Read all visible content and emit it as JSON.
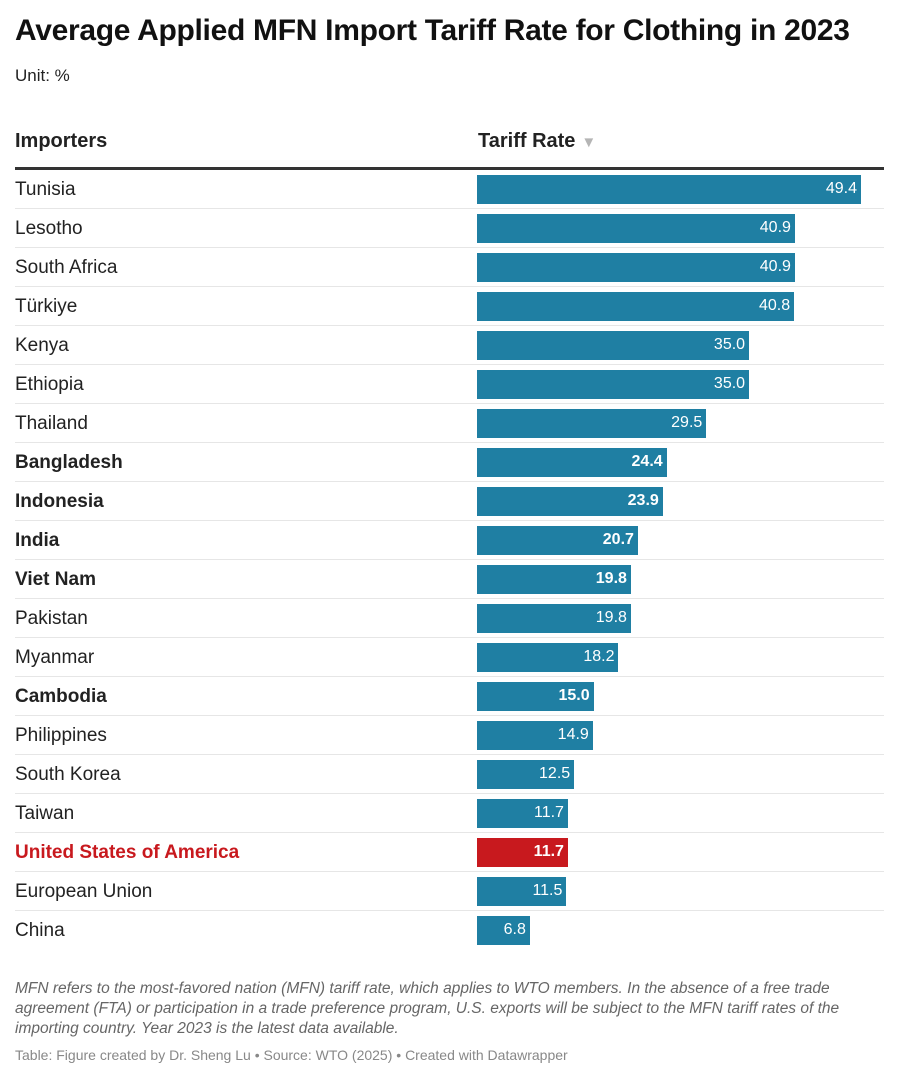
{
  "title": "Average Applied MFN Import Tariff Rate for Clothing in 2023",
  "unit": "Unit: %",
  "columns": {
    "importers": "Importers",
    "rate": "Tariff Rate",
    "sort_icon": "triangle-down-icon"
  },
  "colors": {
    "bar": "#1f7fa3",
    "highlight": "#c8191e"
  },
  "chart_data": {
    "type": "bar",
    "orientation": "horizontal",
    "categories": [
      "Tunisia",
      "Lesotho",
      "South Africa",
      "Türkiye",
      "Kenya",
      "Ethiopia",
      "Thailand",
      "Bangladesh",
      "Indonesia",
      "India",
      "Viet Nam",
      "Pakistan",
      "Myanmar",
      "Cambodia",
      "Philippines",
      "South Korea",
      "Taiwan",
      "United States of America",
      "European Union",
      "China"
    ],
    "values": [
      49.4,
      40.9,
      40.9,
      40.8,
      35.0,
      35.0,
      29.5,
      24.4,
      23.9,
      20.7,
      19.8,
      19.8,
      18.2,
      15.0,
      14.9,
      12.5,
      11.7,
      11.7,
      11.5,
      6.8
    ],
    "bold": [
      "Bangladesh",
      "Indonesia",
      "India",
      "Viet Nam",
      "Cambodia",
      "United States of America"
    ],
    "highlighted": [
      "United States of America"
    ],
    "xlim": [
      0,
      55
    ]
  },
  "notes": "MFN refers to the most-favored nation (MFN) tariff rate, which applies to WTO members. In the absence of a free trade agreement (FTA) or participation in a trade preference program, U.S. exports will be subject to the MFN tariff rates of the importing country. Year 2023 is the latest data available.",
  "source": "Table: Figure created by Dr. Sheng Lu • Source: WTO (2025) • Created with Datawrapper"
}
